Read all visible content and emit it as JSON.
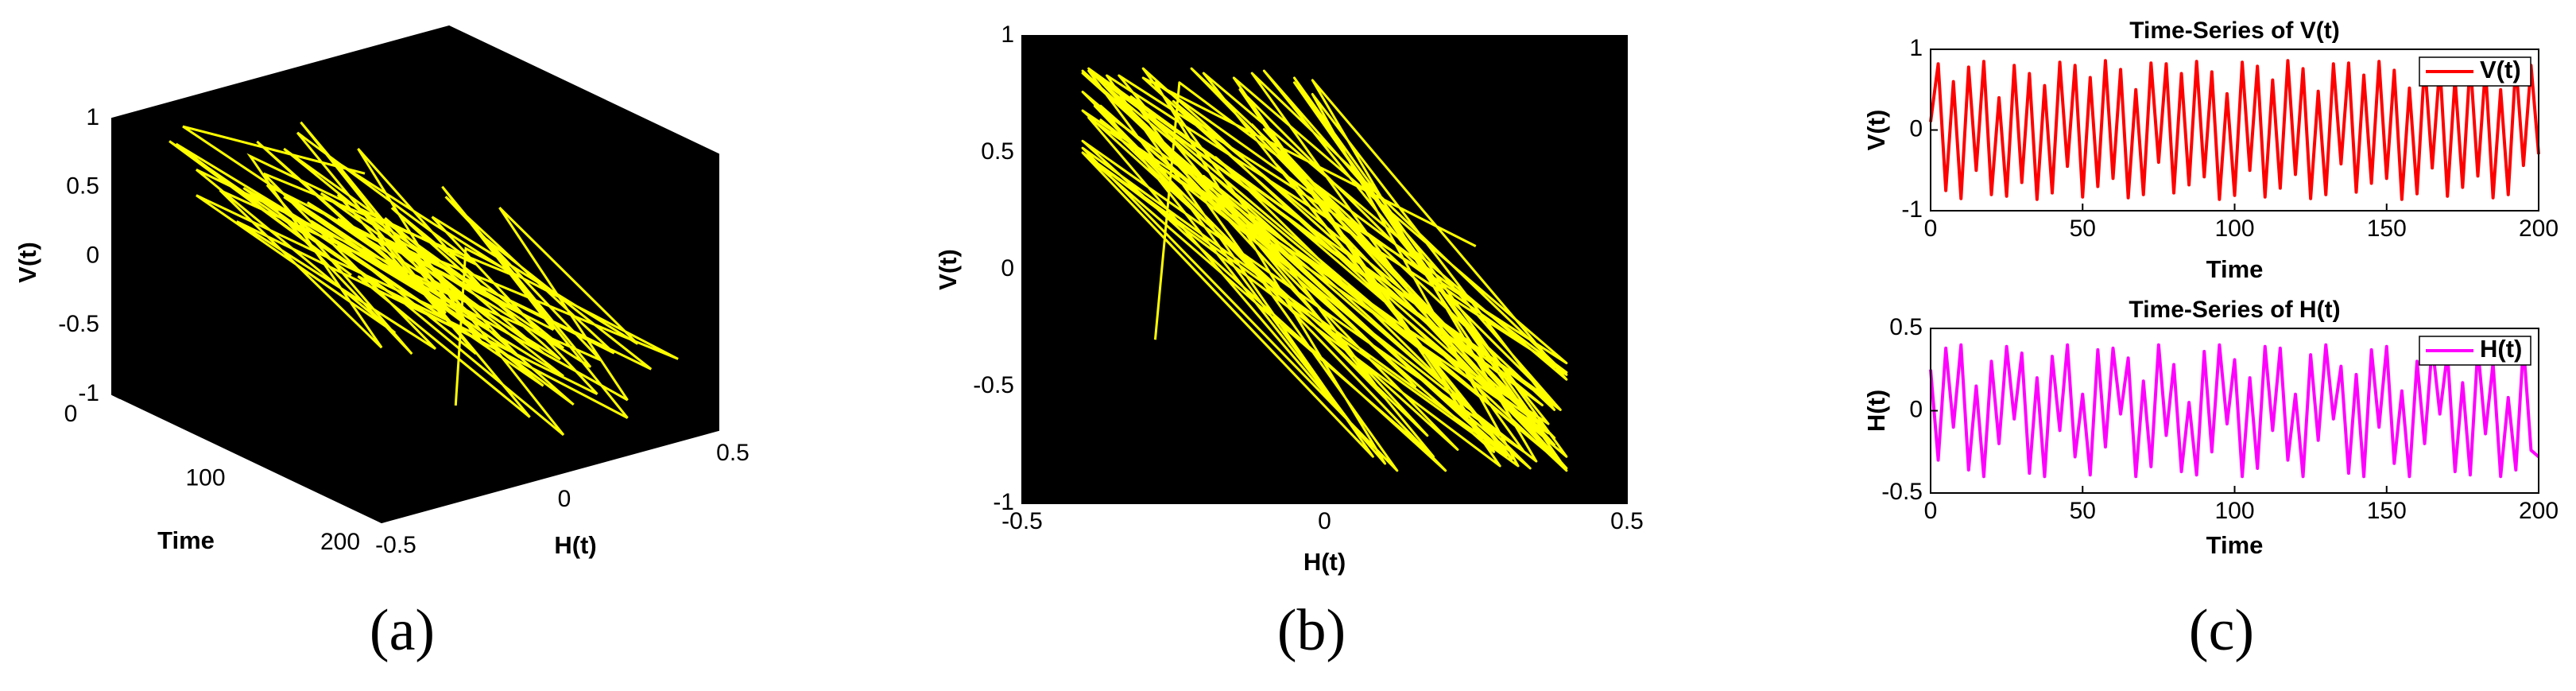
{
  "panel_labels": [
    "(a)",
    "(b)",
    "(c)"
  ],
  "chart_data": [
    {
      "type": "line3d",
      "xlabel": "Time",
      "ylabel": "H(t)",
      "zlabel": "V(t)",
      "color": "#ffff00",
      "background": "#000000",
      "x": [
        0,
        2.5,
        5,
        7.5,
        10,
        12.5,
        15,
        17.5,
        20,
        22.5,
        25,
        27.5,
        30,
        32.5,
        35,
        37.5,
        40,
        42.5,
        45,
        47.5,
        50,
        52.5,
        55,
        57.5,
        60,
        62.5,
        65,
        67.5,
        70,
        72.5,
        75,
        77.5,
        80,
        82.5,
        85,
        87.5,
        90,
        92.5,
        95,
        97.5,
        100,
        102.5,
        105,
        107.5,
        110,
        112.5,
        115,
        117.5,
        120,
        122.5,
        125,
        127.5,
        130,
        132.5,
        135,
        137.5,
        140,
        142.5,
        145,
        147.5,
        150,
        152.5,
        155,
        157.5,
        160,
        162.5,
        165,
        167.5,
        170,
        172.5,
        175,
        177.5,
        180,
        182.5,
        185,
        187.5,
        190,
        192.5,
        195,
        197.5,
        200
      ],
      "y": [
        0.25,
        -0.3,
        0.38,
        -0.1,
        0.4,
        -0.36,
        0.15,
        -0.4,
        0.3,
        -0.2,
        0.39,
        -0.05,
        0.35,
        -0.38,
        0.2,
        -0.4,
        0.33,
        -0.12,
        0.4,
        -0.28,
        0.1,
        -0.39,
        0.37,
        -0.22,
        0.38,
        -0.02,
        0.32,
        -0.4,
        0.18,
        -0.34,
        0.4,
        -0.15,
        0.28,
        -0.37,
        0.05,
        -0.39,
        0.36,
        -0.25,
        0.4,
        -0.08,
        0.31,
        -0.4,
        0.2,
        -0.35,
        0.39,
        -0.12,
        0.38,
        -0.3,
        0.1,
        -0.4,
        0.34,
        -0.18,
        0.4,
        -0.05,
        0.27,
        -0.38,
        0.22,
        -0.4,
        0.37,
        -0.1,
        0.39,
        -0.32,
        0.12,
        -0.4,
        0.3,
        -0.2,
        0.4,
        -0.02,
        0.35,
        -0.37,
        0.17,
        -0.39,
        0.38,
        -0.14,
        0.29,
        -0.4,
        0.08,
        -0.36,
        0.4,
        -0.24,
        -0.28
      ],
      "z": [
        0.1,
        0.82,
        -0.75,
        0.6,
        -0.85,
        0.78,
        -0.5,
        0.85,
        -0.8,
        0.4,
        -0.82,
        0.8,
        -0.65,
        0.7,
        -0.86,
        0.55,
        -0.78,
        0.84,
        -0.45,
        0.8,
        -0.83,
        0.65,
        -0.7,
        0.86,
        -0.6,
        0.75,
        -0.84,
        0.5,
        -0.8,
        0.83,
        -0.4,
        0.82,
        -0.78,
        0.7,
        -0.68,
        0.85,
        -0.58,
        0.72,
        -0.86,
        0.45,
        -0.81,
        0.84,
        -0.5,
        0.79,
        -0.83,
        0.62,
        -0.72,
        0.86,
        -0.55,
        0.76,
        -0.85,
        0.48,
        -0.8,
        0.82,
        -0.42,
        0.83,
        -0.77,
        0.68,
        -0.66,
        0.85,
        -0.6,
        0.74,
        -0.86,
        0.52,
        -0.79,
        0.84,
        -0.47,
        0.81,
        -0.82,
        0.64,
        -0.71,
        0.86,
        -0.57,
        0.77,
        -0.84,
        0.5,
        -0.8,
        0.83,
        -0.44,
        0.8,
        -0.3
      ],
      "xlim": [
        0,
        200
      ],
      "xticks": [
        0,
        100,
        200
      ],
      "ylim": [
        -0.5,
        0.5
      ],
      "yticks": [
        -0.5,
        0,
        0.5
      ],
      "zlim": [
        -1,
        1
      ],
      "zticks": [
        -1,
        -0.5,
        0,
        0.5,
        1
      ]
    },
    {
      "type": "line",
      "xlabel": "H(t)",
      "ylabel": "V(t)",
      "color": "#ffff00",
      "background": "#000000",
      "x": [
        0.25,
        -0.3,
        0.38,
        -0.1,
        0.4,
        -0.36,
        0.15,
        -0.4,
        0.3,
        -0.2,
        0.39,
        -0.05,
        0.35,
        -0.38,
        0.2,
        -0.4,
        0.33,
        -0.12,
        0.4,
        -0.28,
        0.1,
        -0.39,
        0.37,
        -0.22,
        0.38,
        -0.02,
        0.32,
        -0.4,
        0.18,
        -0.34,
        0.4,
        -0.15,
        0.28,
        -0.37,
        0.05,
        -0.39,
        0.36,
        -0.25,
        0.4,
        -0.08,
        0.31,
        -0.4,
        0.2,
        -0.35,
        0.39,
        -0.12,
        0.38,
        -0.3,
        0.1,
        -0.4,
        0.34,
        -0.18,
        0.4,
        -0.05,
        0.27,
        -0.38,
        0.22,
        -0.4,
        0.37,
        -0.1,
        0.39,
        -0.32,
        0.12,
        -0.4,
        0.3,
        -0.2,
        0.4,
        -0.02,
        0.35,
        -0.37,
        0.17,
        -0.39,
        0.38,
        -0.14,
        0.29,
        -0.4,
        0.08,
        -0.36,
        0.4,
        -0.24,
        -0.28
      ],
      "values": [
        0.1,
        0.82,
        -0.75,
        0.6,
        -0.85,
        0.78,
        -0.5,
        0.85,
        -0.8,
        0.4,
        -0.82,
        0.8,
        -0.65,
        0.7,
        -0.86,
        0.55,
        -0.78,
        0.84,
        -0.45,
        0.8,
        -0.83,
        0.65,
        -0.7,
        0.86,
        -0.6,
        0.75,
        -0.84,
        0.5,
        -0.8,
        0.83,
        -0.4,
        0.82,
        -0.78,
        0.7,
        -0.68,
        0.85,
        -0.58,
        0.72,
        -0.86,
        0.45,
        -0.81,
        0.84,
        -0.5,
        0.79,
        -0.83,
        0.62,
        -0.72,
        0.86,
        -0.55,
        0.76,
        -0.85,
        0.48,
        -0.8,
        0.82,
        -0.42,
        0.83,
        -0.77,
        0.68,
        -0.66,
        0.85,
        -0.6,
        0.74,
        -0.86,
        0.52,
        -0.79,
        0.84,
        -0.47,
        0.81,
        -0.82,
        0.64,
        -0.71,
        0.86,
        -0.57,
        0.77,
        -0.84,
        0.5,
        -0.8,
        0.83,
        -0.44,
        0.8,
        -0.3
      ],
      "xlim": [
        -0.5,
        0.5
      ],
      "xticks": [
        -0.5,
        0,
        0.5
      ],
      "ylim": [
        -1,
        1
      ],
      "yticks": [
        -1,
        -0.5,
        0,
        0.5,
        1
      ]
    },
    {
      "type": "line",
      "title": "Time-Series of V(t)",
      "xlabel": "Time",
      "ylabel": "V(t)",
      "background": "#ffffff",
      "legend": "upper right",
      "x": [
        0,
        2.5,
        5,
        7.5,
        10,
        12.5,
        15,
        17.5,
        20,
        22.5,
        25,
        27.5,
        30,
        32.5,
        35,
        37.5,
        40,
        42.5,
        45,
        47.5,
        50,
        52.5,
        55,
        57.5,
        60,
        62.5,
        65,
        67.5,
        70,
        72.5,
        75,
        77.5,
        80,
        82.5,
        85,
        87.5,
        90,
        92.5,
        95,
        97.5,
        100,
        102.5,
        105,
        107.5,
        110,
        112.5,
        115,
        117.5,
        120,
        122.5,
        125,
        127.5,
        130,
        132.5,
        135,
        137.5,
        140,
        142.5,
        145,
        147.5,
        150,
        152.5,
        155,
        157.5,
        160,
        162.5,
        165,
        167.5,
        170,
        172.5,
        175,
        177.5,
        180,
        182.5,
        185,
        187.5,
        190,
        192.5,
        195,
        197.5,
        200
      ],
      "series": [
        {
          "name": "V(t)",
          "color": "#ff0000",
          "values": [
            0.1,
            0.82,
            -0.75,
            0.6,
            -0.85,
            0.78,
            -0.5,
            0.85,
            -0.8,
            0.4,
            -0.82,
            0.8,
            -0.65,
            0.7,
            -0.86,
            0.55,
            -0.78,
            0.84,
            -0.45,
            0.8,
            -0.83,
            0.65,
            -0.7,
            0.86,
            -0.6,
            0.75,
            -0.84,
            0.5,
            -0.8,
            0.83,
            -0.4,
            0.82,
            -0.78,
            0.7,
            -0.68,
            0.85,
            -0.58,
            0.72,
            -0.86,
            0.45,
            -0.81,
            0.84,
            -0.5,
            0.79,
            -0.83,
            0.62,
            -0.72,
            0.86,
            -0.55,
            0.76,
            -0.85,
            0.48,
            -0.8,
            0.82,
            -0.42,
            0.83,
            -0.77,
            0.68,
            -0.66,
            0.85,
            -0.6,
            0.74,
            -0.86,
            0.52,
            -0.79,
            0.84,
            -0.47,
            0.81,
            -0.82,
            0.64,
            -0.71,
            0.86,
            -0.57,
            0.77,
            -0.84,
            0.5,
            -0.8,
            0.83,
            -0.44,
            0.8,
            -0.3
          ]
        }
      ],
      "xlim": [
        0,
        200
      ],
      "xticks": [
        0,
        50,
        100,
        150,
        200
      ],
      "ylim": [
        -1,
        1
      ],
      "yticks": [
        -1,
        0,
        1
      ]
    },
    {
      "type": "line",
      "title": "Time-Series of H(t)",
      "xlabel": "Time",
      "ylabel": "H(t)",
      "background": "#ffffff",
      "legend": "upper right",
      "x": [
        0,
        2.5,
        5,
        7.5,
        10,
        12.5,
        15,
        17.5,
        20,
        22.5,
        25,
        27.5,
        30,
        32.5,
        35,
        37.5,
        40,
        42.5,
        45,
        47.5,
        50,
        52.5,
        55,
        57.5,
        60,
        62.5,
        65,
        67.5,
        70,
        72.5,
        75,
        77.5,
        80,
        82.5,
        85,
        87.5,
        90,
        92.5,
        95,
        97.5,
        100,
        102.5,
        105,
        107.5,
        110,
        112.5,
        115,
        117.5,
        120,
        122.5,
        125,
        127.5,
        130,
        132.5,
        135,
        137.5,
        140,
        142.5,
        145,
        147.5,
        150,
        152.5,
        155,
        157.5,
        160,
        162.5,
        165,
        167.5,
        170,
        172.5,
        175,
        177.5,
        180,
        182.5,
        185,
        187.5,
        190,
        192.5,
        195,
        197.5,
        200
      ],
      "series": [
        {
          "name": "H(t)",
          "color": "#ff00ff",
          "values": [
            0.25,
            -0.3,
            0.38,
            -0.1,
            0.4,
            -0.36,
            0.15,
            -0.4,
            0.3,
            -0.2,
            0.39,
            -0.05,
            0.35,
            -0.38,
            0.2,
            -0.4,
            0.33,
            -0.12,
            0.4,
            -0.28,
            0.1,
            -0.39,
            0.37,
            -0.22,
            0.38,
            -0.02,
            0.32,
            -0.4,
            0.18,
            -0.34,
            0.4,
            -0.15,
            0.28,
            -0.37,
            0.05,
            -0.39,
            0.36,
            -0.25,
            0.4,
            -0.08,
            0.31,
            -0.4,
            0.2,
            -0.35,
            0.39,
            -0.12,
            0.38,
            -0.3,
            0.1,
            -0.4,
            0.34,
            -0.18,
            0.4,
            -0.05,
            0.27,
            -0.38,
            0.22,
            -0.4,
            0.37,
            -0.1,
            0.39,
            -0.32,
            0.12,
            -0.4,
            0.3,
            -0.2,
            0.4,
            -0.02,
            0.35,
            -0.37,
            0.17,
            -0.39,
            0.38,
            -0.14,
            0.29,
            -0.4,
            0.08,
            -0.36,
            0.4,
            -0.24,
            -0.28
          ]
        }
      ],
      "xlim": [
        0,
        200
      ],
      "xticks": [
        0,
        50,
        100,
        150,
        200
      ],
      "ylim": [
        -0.5,
        0.5
      ],
      "yticks": [
        -0.5,
        0,
        0.5
      ]
    }
  ]
}
